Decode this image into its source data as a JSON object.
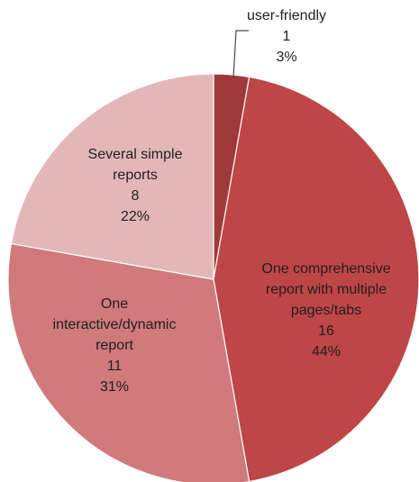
{
  "chart_data": {
    "type": "pie",
    "title": "",
    "legend": "none",
    "series": [
      {
        "values": [
          {
            "label": "user-friendly",
            "count": 1,
            "percent": "3%",
            "color": "#a03a3a"
          },
          {
            "label": "One comprehensive report with multiple pages/tabs",
            "count": 16,
            "percent": "44%",
            "color": "#bf4646"
          },
          {
            "label": "One interactive/dynamic report",
            "count": 11,
            "percent": "31%",
            "color": "#d07a7c"
          },
          {
            "label": "Several simple reports",
            "count": 8,
            "percent": "22%",
            "color": "#e3b7b8"
          }
        ]
      }
    ]
  }
}
